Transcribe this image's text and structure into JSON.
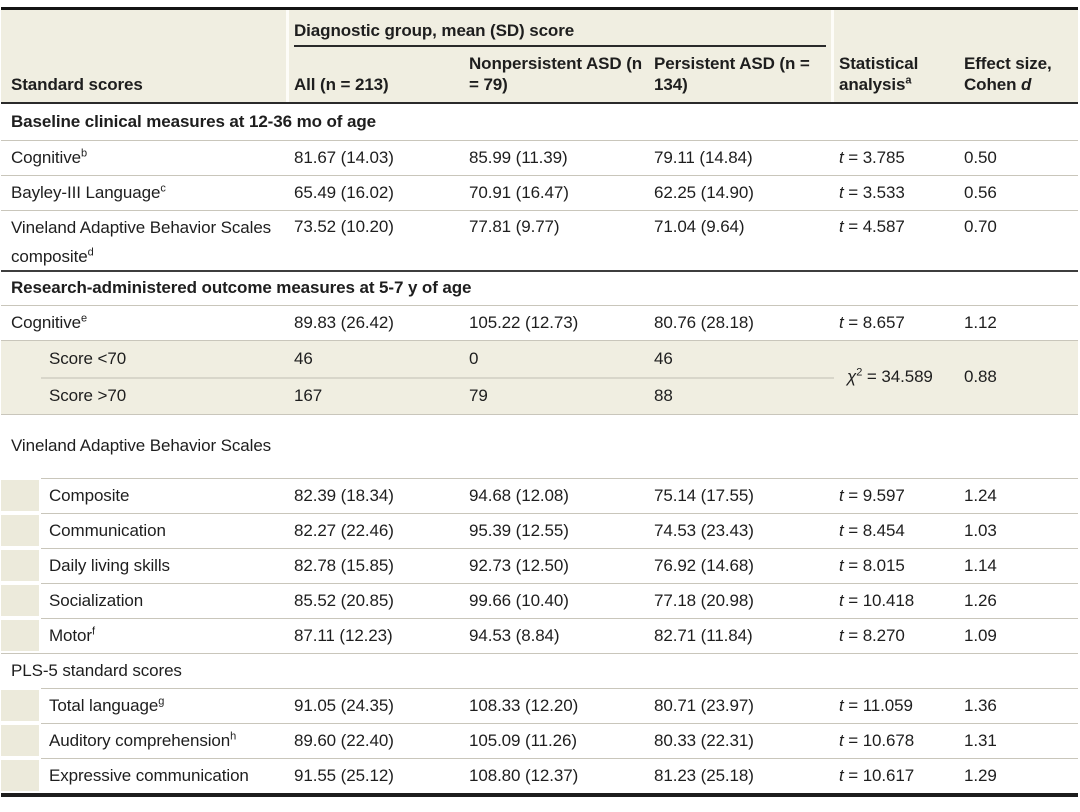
{
  "table": {
    "header": {
      "group_spanner": "Diagnostic group, mean (SD) score",
      "standard_scores": "Standard scores",
      "all": "All (n = 213)",
      "nonpersistent": "Nonpersistent ASD (n = 79)",
      "persistent": "Persistent ASD (n = 134)",
      "statistical": "Statistical analysis",
      "statistical_sup": "a",
      "effect_line1": "Effect size,",
      "effect_line2": "Cohen ",
      "effect_italic": "d"
    },
    "rows": [
      {
        "type": "section",
        "label": "Baseline clinical measures at 12-36 mo of age"
      },
      {
        "type": "data",
        "label": "Cognitive",
        "sup": "b",
        "all": "81.67 (14.03)",
        "nonpersistent": "85.99 (11.39)",
        "persistent": "79.11 (14.84)",
        "stat_var": "t",
        "stat_rest": " = 3.785",
        "effect": "0.50"
      },
      {
        "type": "data",
        "label": "Bayley-III Language",
        "sup": "c",
        "all": "65.49 (16.02)",
        "nonpersistent": "70.91 (16.47)",
        "persistent": "62.25 (14.90)",
        "stat_var": "t",
        "stat_rest": " = 3.533",
        "effect": "0.56"
      },
      {
        "type": "data",
        "label": "Vineland Adaptive Behavior Scales composite",
        "sup": "d",
        "all": "73.52 (10.20)",
        "nonpersistent": "77.81 (9.77)",
        "persistent": "71.04 (9.64)",
        "stat_var": "t",
        "stat_rest": " = 4.587",
        "effect": "0.70"
      },
      {
        "type": "section",
        "label": "Research-administered outcome measures at 5-7 y of age"
      },
      {
        "type": "data",
        "label": "Cognitive",
        "sup": "e",
        "all": "89.83 (26.42)",
        "nonpersistent": "105.22 (12.73)",
        "persistent": "80.76 (28.18)",
        "stat_var": "t",
        "stat_rest": " = 8.657",
        "effect": "1.12"
      },
      {
        "type": "data-shaded",
        "label": "Score <70",
        "all": "46",
        "nonpersistent": "0",
        "persistent": "46"
      },
      {
        "type": "data-shaded",
        "label": "Score >70",
        "all": "167",
        "nonpersistent": "79",
        "persistent": "88"
      },
      {
        "type": "group-label",
        "label": "Vineland Adaptive Behavior Scales"
      },
      {
        "type": "data-indent",
        "label": "Composite",
        "all": "82.39 (18.34)",
        "nonpersistent": "94.68 (12.08)",
        "persistent": "75.14 (17.55)",
        "stat_var": "t",
        "stat_rest": " = 9.597",
        "effect": "1.24"
      },
      {
        "type": "data-indent",
        "label": "Communication",
        "all": "82.27 (22.46)",
        "nonpersistent": "95.39 (12.55)",
        "persistent": "74.53 (23.43)",
        "stat_var": "t",
        "stat_rest": " = 8.454",
        "effect": "1.03"
      },
      {
        "type": "data-indent",
        "label": "Daily living skills",
        "all": "82.78 (15.85)",
        "nonpersistent": "92.73 (12.50)",
        "persistent": "76.92 (14.68)",
        "stat_var": "t",
        "stat_rest": " = 8.015",
        "effect": "1.14"
      },
      {
        "type": "data-indent",
        "label": "Socialization",
        "all": "85.52 (20.85)",
        "nonpersistent": "99.66 (10.40)",
        "persistent": "77.18 (20.98)",
        "stat_var": "t",
        "stat_rest": " = 10.418",
        "effect": "1.26"
      },
      {
        "type": "data-indent",
        "label": "Motor",
        "sup": "f",
        "all": "87.11 (12.23)",
        "nonpersistent": "94.53 (8.84)",
        "persistent": "82.71 (11.84)",
        "stat_var": "t",
        "stat_rest": " = 8.270",
        "effect": "1.09"
      },
      {
        "type": "group-label",
        "label": "PLS-5 standard scores"
      },
      {
        "type": "data-indent",
        "label": "Total language",
        "sup": "g",
        "all": "91.05 (24.35)",
        "nonpersistent": "108.33 (12.20)",
        "persistent": "80.71 (23.97)",
        "stat_var": "t",
        "stat_rest": " = 11.059",
        "effect": "1.36"
      },
      {
        "type": "data-indent",
        "label": "Auditory comprehension",
        "sup": "h",
        "all": "89.60 (22.40)",
        "nonpersistent": "105.09 (11.26)",
        "persistent": "80.33 (22.31)",
        "stat_var": "t",
        "stat_rest": " = 10.678",
        "effect": "1.31"
      },
      {
        "type": "data-indent",
        "label": "Expressive communication",
        "all": "91.55 (25.12)",
        "nonpersistent": "108.80 (12.37)",
        "persistent": "81.23 (25.18)",
        "stat_var": "t",
        "stat_rest": " = 10.617",
        "effect": "1.29"
      }
    ],
    "score_group": {
      "stat_var": "χ",
      "stat_sup": "2",
      "stat_rest": " = 34.589",
      "effect": "0.88"
    },
    "colors": {
      "shaded_row": "#f0eee1",
      "indent_marker": "#eceadb",
      "row_line": "#c9c6bb",
      "section_line": "#3e3e3e",
      "frame_line": "#141414",
      "text": "#1e1e1e"
    }
  }
}
